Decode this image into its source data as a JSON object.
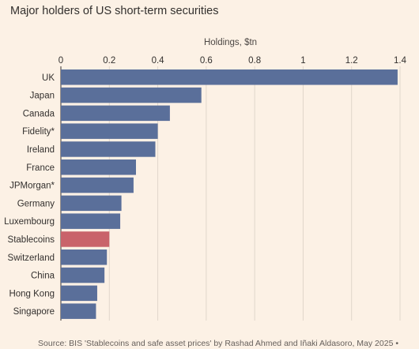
{
  "title": "Major holders of US short-term securities",
  "source": "Source: BIS 'Stablecoins and safe asset prices' by Rashad Ahmed and Iñaki Aldasoro, May 2025 •",
  "colors": {
    "background": "#fcf1e5",
    "bar": "#5a6f9a",
    "highlight": "#c9636a"
  },
  "chart_data": {
    "type": "bar",
    "orientation": "horizontal",
    "title": "Major holders of US short-term securities",
    "xlabel": "Holdings, $tn",
    "ylabel": "",
    "xlim": [
      0,
      1.4
    ],
    "x_ticks": [
      0,
      0.2,
      0.4,
      0.6,
      0.8,
      1,
      1.2,
      1.4
    ],
    "x_tick_labels": [
      "0",
      "0.2",
      "0.4",
      "0.6",
      "0.8",
      "1",
      "1.2",
      "1.4"
    ],
    "axis_position": "top",
    "grid": true,
    "categories": [
      "UK",
      "Japan",
      "Canada",
      "Fidelity*",
      "Ireland",
      "France",
      "JPMorgan*",
      "Germany",
      "Luxembourg",
      "Stablecoins",
      "Switzerland",
      "China",
      "Hong Kong",
      "Singapore"
    ],
    "values": [
      1.39,
      0.58,
      0.45,
      0.4,
      0.39,
      0.31,
      0.3,
      0.25,
      0.245,
      0.2,
      0.19,
      0.18,
      0.15,
      0.145
    ],
    "highlighted": [
      "Stablecoins"
    ]
  }
}
